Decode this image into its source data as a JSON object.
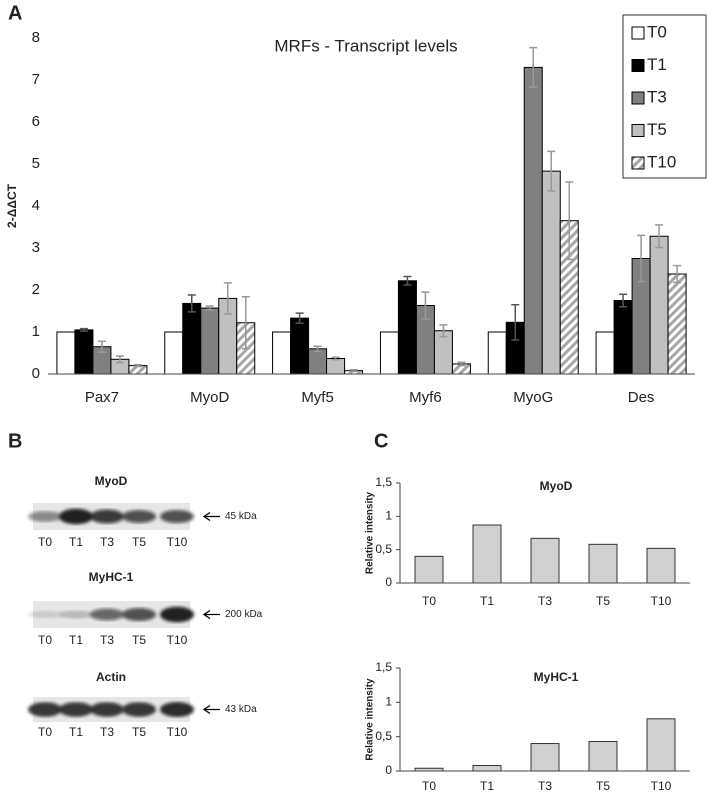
{
  "panel_labels": [
    "A",
    "B",
    "C"
  ],
  "chart_data": [
    {
      "type": "bar",
      "title": "MRFs - Transcript levels",
      "y_label": "2-ΔΔCT",
      "categories": [
        "Pax7",
        "MyoD",
        "Myf5",
        "Myf6",
        "MyoG",
        "Des"
      ],
      "series": [
        {
          "name": "T0",
          "color": "#ffffff",
          "values": [
            1,
            1,
            1,
            1,
            1,
            1
          ]
        },
        {
          "name": "T1",
          "color": "#000000",
          "values": [
            1.05,
            1.68,
            1.33,
            2.22,
            1.23,
            1.75
          ],
          "errors": [
            0.03,
            0.2,
            0.12,
            0.1,
            0.42,
            0.15
          ]
        },
        {
          "name": "T3",
          "color": "#808080",
          "values": [
            0.65,
            1.57,
            0.6,
            1.63,
            7.3,
            2.75
          ],
          "errors": [
            0.13,
            0.05,
            0.06,
            0.32,
            0.47,
            0.55
          ]
        },
        {
          "name": "T5",
          "color": "#c0c0c0",
          "values": [
            0.35,
            1.8,
            0.37,
            1.03,
            4.83,
            3.28
          ],
          "errors": [
            0.08,
            0.37,
            0.03,
            0.14,
            0.47,
            0.27
          ]
        },
        {
          "name": "T10",
          "color": "#a6a6a6",
          "pattern": "hatch",
          "values": [
            0.2,
            1.22,
            0.08,
            0.24,
            3.65,
            2.38
          ],
          "errors": [
            0.02,
            0.62,
            0.02,
            0.04,
            0.92,
            0.2
          ]
        }
      ],
      "ylim": [
        0,
        8
      ],
      "yticks": [
        0,
        1,
        2,
        3,
        4,
        5,
        6,
        7,
        8
      ],
      "legend": "top-right"
    },
    {
      "type": "bar",
      "title": "MyoD",
      "y_label": "Relative intensity",
      "color": "#d0d0d0",
      "categories": [
        "T0",
        "T1",
        "T3",
        "T5",
        "T10"
      ],
      "values": [
        0.4,
        0.87,
        0.67,
        0.58,
        0.52
      ],
      "ylim": [
        0,
        1.5
      ],
      "yticks": [
        0,
        {
          "value": 0.5,
          "label": "0,5"
        },
        1,
        {
          "value": 1.5,
          "label": "1,5"
        }
      ]
    },
    {
      "type": "bar",
      "title": "MyHC-1",
      "y_label": "Relative intensity",
      "color": "#d0d0d0",
      "categories": [
        "T0",
        "T1",
        "T3",
        "T5",
        "T10"
      ],
      "values": [
        0.04,
        0.08,
        0.4,
        0.43,
        0.76
      ],
      "ylim": [
        0,
        1.5
      ],
      "yticks": [
        0,
        {
          "value": 0.5,
          "label": "0,5"
        },
        1,
        {
          "value": 1.5,
          "label": "1,5"
        }
      ]
    }
  ],
  "blots": [
    {
      "title": "MyoD",
      "lanes": [
        "T0",
        "T1",
        "T3",
        "T5",
        "T10"
      ],
      "size": "45 kDa"
    },
    {
      "title": "MyHC-1",
      "lanes": [
        "T0",
        "T1",
        "T3",
        "T5",
        "T10"
      ],
      "size": "200 kDa"
    },
    {
      "title": "Actin",
      "lanes": [
        "T0",
        "T1",
        "T3",
        "T5",
        "T10"
      ],
      "size": "43 kDa"
    }
  ]
}
